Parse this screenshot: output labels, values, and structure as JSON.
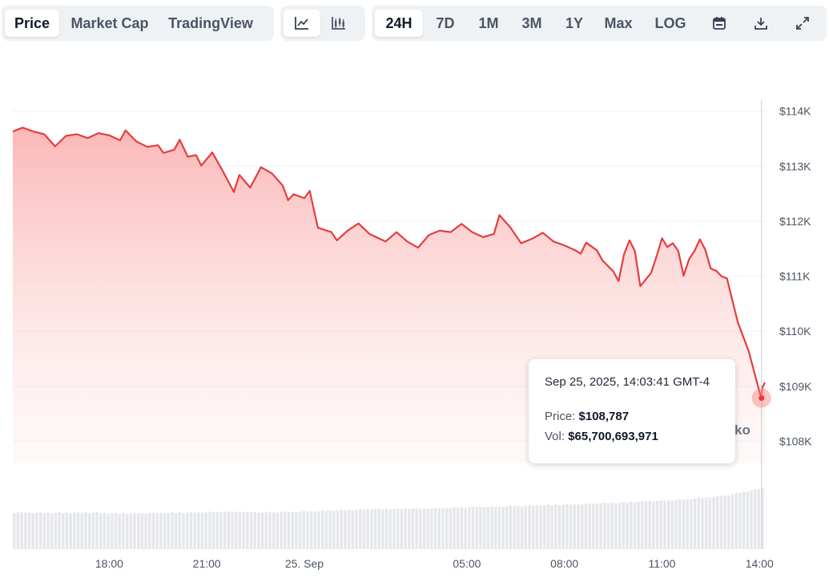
{
  "toolbar": {
    "view_tabs": [
      {
        "label": "Price",
        "active": true
      },
      {
        "label": "Market Cap",
        "active": false
      },
      {
        "label": "TradingView",
        "active": false
      }
    ],
    "chart_type_icons": [
      "line-chart-icon",
      "candlestick-chart-icon"
    ],
    "ranges": [
      {
        "label": "24H",
        "active": true
      },
      {
        "label": "7D",
        "active": false
      },
      {
        "label": "1M",
        "active": false
      },
      {
        "label": "3M",
        "active": false
      },
      {
        "label": "1Y",
        "active": false
      },
      {
        "label": "Max",
        "active": false
      }
    ],
    "log_label": "LOG",
    "action_icons": [
      "calendar-icon",
      "download-icon",
      "fullscreen-icon"
    ]
  },
  "tooltip": {
    "date": "Sep 25, 2025, 14:03:41 GMT-4",
    "price_label": "Price:",
    "price_value": "$108,787",
    "vol_label": "Vol:",
    "vol_value": "$65,700,693,971"
  },
  "watermark_fragment": "ko",
  "colors": {
    "line": "#e53e3e",
    "fill_top": "#fbb3b3",
    "volume": "#e5e7eb",
    "crosshair": "#c7cdd4",
    "grid": "#eef0f3"
  },
  "chart_data": {
    "type": "area",
    "x_type": "time",
    "x_range": [
      "2025-09-24T15:02",
      "2025-09-25T14:10"
    ],
    "ylim": [
      107600,
      114300
    ],
    "y_scale": "linear",
    "y_ticks": [
      108000,
      109000,
      110000,
      111000,
      112000,
      113000,
      114000
    ],
    "y_tick_labels": [
      "$108K",
      "$109K",
      "$110K",
      "$111K",
      "$112K",
      "$113K",
      "$114K"
    ],
    "x_ticks": [
      "2025-09-24T18:00",
      "2025-09-24T21:00",
      "2025-09-25T00:00",
      "2025-09-25T05:00",
      "2025-09-25T08:00",
      "2025-09-25T11:00",
      "2025-09-25T14:00"
    ],
    "x_tick_labels": [
      "18:00",
      "21:00",
      "25. Sep",
      "05:00",
      "08:00",
      "11:00",
      "14:00"
    ],
    "grid": true,
    "series": [
      {
        "name": "Price",
        "points": [
          [
            "2025-09-24T15:02",
            113630
          ],
          [
            "2025-09-24T15:20",
            113700
          ],
          [
            "2025-09-24T15:40",
            113630
          ],
          [
            "2025-09-24T16:00",
            113580
          ],
          [
            "2025-09-24T16:20",
            113360
          ],
          [
            "2025-09-24T16:40",
            113550
          ],
          [
            "2025-09-24T17:00",
            113580
          ],
          [
            "2025-09-24T17:20",
            113510
          ],
          [
            "2025-09-24T17:40",
            113600
          ],
          [
            "2025-09-24T18:00",
            113560
          ],
          [
            "2025-09-24T18:20",
            113470
          ],
          [
            "2025-09-24T18:30",
            113650
          ],
          [
            "2025-09-24T18:50",
            113450
          ],
          [
            "2025-09-24T19:10",
            113350
          ],
          [
            "2025-09-24T19:30",
            113380
          ],
          [
            "2025-09-24T19:40",
            113240
          ],
          [
            "2025-09-24T20:00",
            113300
          ],
          [
            "2025-09-24T20:10",
            113480
          ],
          [
            "2025-09-24T20:25",
            113170
          ],
          [
            "2025-09-24T20:40",
            113200
          ],
          [
            "2025-09-24T20:50",
            113010
          ],
          [
            "2025-09-24T21:10",
            113250
          ],
          [
            "2025-09-24T21:30",
            112900
          ],
          [
            "2025-09-24T21:50",
            112530
          ],
          [
            "2025-09-24T22:00",
            112840
          ],
          [
            "2025-09-24T22:20",
            112610
          ],
          [
            "2025-09-24T22:40",
            112980
          ],
          [
            "2025-09-24T23:00",
            112870
          ],
          [
            "2025-09-24T23:20",
            112650
          ],
          [
            "2025-09-24T23:30",
            112380
          ],
          [
            "2025-09-24T23:40",
            112490
          ],
          [
            "2025-09-25T00:00",
            112420
          ],
          [
            "2025-09-25T00:10",
            112550
          ],
          [
            "2025-09-25T00:25",
            111880
          ],
          [
            "2025-09-25T00:50",
            111800
          ],
          [
            "2025-09-25T01:00",
            111650
          ],
          [
            "2025-09-25T01:20",
            111830
          ],
          [
            "2025-09-25T01:40",
            111960
          ],
          [
            "2025-09-25T02:00",
            111770
          ],
          [
            "2025-09-25T02:30",
            111630
          ],
          [
            "2025-09-25T02:50",
            111800
          ],
          [
            "2025-09-25T03:10",
            111630
          ],
          [
            "2025-09-25T03:30",
            111520
          ],
          [
            "2025-09-25T03:50",
            111750
          ],
          [
            "2025-09-25T04:10",
            111830
          ],
          [
            "2025-09-25T04:30",
            111800
          ],
          [
            "2025-09-25T04:50",
            111950
          ],
          [
            "2025-09-25T05:10",
            111800
          ],
          [
            "2025-09-25T05:30",
            111710
          ],
          [
            "2025-09-25T05:50",
            111770
          ],
          [
            "2025-09-25T06:00",
            112110
          ],
          [
            "2025-09-25T06:20",
            111890
          ],
          [
            "2025-09-25T06:40",
            111600
          ],
          [
            "2025-09-25T07:00",
            111680
          ],
          [
            "2025-09-25T07:20",
            111790
          ],
          [
            "2025-09-25T07:40",
            111630
          ],
          [
            "2025-09-25T08:00",
            111560
          ],
          [
            "2025-09-25T08:20",
            111470
          ],
          [
            "2025-09-25T08:30",
            111410
          ],
          [
            "2025-09-25T08:40",
            111610
          ],
          [
            "2025-09-25T09:00",
            111470
          ],
          [
            "2025-09-25T09:10",
            111290
          ],
          [
            "2025-09-25T09:30",
            111090
          ],
          [
            "2025-09-25T09:40",
            110910
          ],
          [
            "2025-09-25T09:50",
            111400
          ],
          [
            "2025-09-25T10:00",
            111650
          ],
          [
            "2025-09-25T10:10",
            111460
          ],
          [
            "2025-09-25T10:20",
            110820
          ],
          [
            "2025-09-25T10:40",
            111060
          ],
          [
            "2025-09-25T10:50",
            111360
          ],
          [
            "2025-09-25T11:00",
            111690
          ],
          [
            "2025-09-25T11:10",
            111530
          ],
          [
            "2025-09-25T11:20",
            111600
          ],
          [
            "2025-09-25T11:30",
            111460
          ],
          [
            "2025-09-25T11:40",
            111010
          ],
          [
            "2025-09-25T11:50",
            111310
          ],
          [
            "2025-09-25T12:00",
            111460
          ],
          [
            "2025-09-25T12:10",
            111670
          ],
          [
            "2025-09-25T12:20",
            111480
          ],
          [
            "2025-09-25T12:30",
            111140
          ],
          [
            "2025-09-25T12:40",
            111100
          ],
          [
            "2025-09-25T12:50",
            111000
          ],
          [
            "2025-09-25T13:00",
            110960
          ],
          [
            "2025-09-25T13:10",
            110560
          ],
          [
            "2025-09-25T13:20",
            110160
          ],
          [
            "2025-09-25T13:40",
            109640
          ],
          [
            "2025-09-25T14:00",
            108900
          ],
          [
            "2025-09-25T14:03",
            108790
          ],
          [
            "2025-09-25T14:05",
            108970
          ],
          [
            "2025-09-25T14:10",
            109070
          ]
        ]
      }
    ],
    "volume": {
      "name": "Vol",
      "x_range": [
        "2025-09-24T15:02",
        "2025-09-25T14:10"
      ],
      "relative_heights": [
        0.6,
        0.59,
        0.6,
        0.58,
        0.59,
        0.6,
        0.61,
        0.6,
        0.61,
        0.63,
        0.65,
        0.66,
        0.67,
        0.69,
        0.7,
        0.72,
        0.74,
        0.76,
        0.79,
        0.82,
        0.88,
        1.0
      ]
    },
    "tooltip_point": {
      "x": "2025-09-25T14:03:41",
      "price": 108787,
      "volume": 65700693971
    }
  }
}
